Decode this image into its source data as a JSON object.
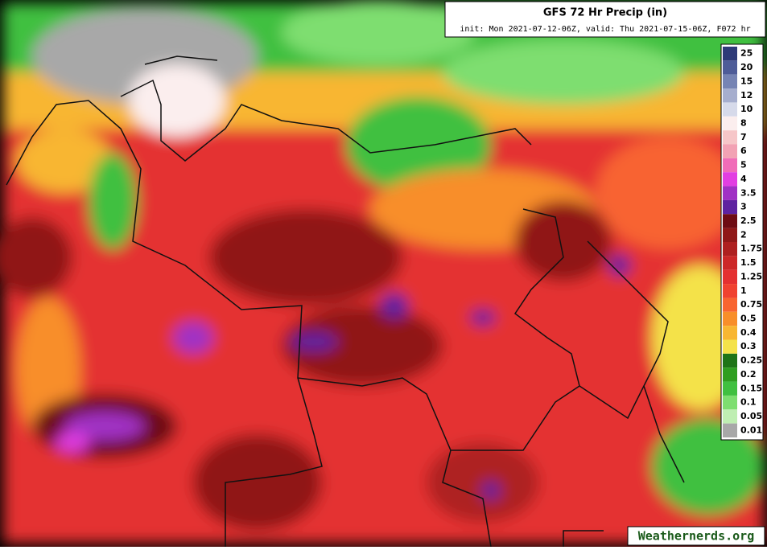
{
  "header": {
    "title": "GFS 72 Hr Precip (in)",
    "subtitle": "init: Mon 2021-07-12-06Z, valid: Thu 2021-07-15-06Z, F072 hr"
  },
  "legend": {
    "items": [
      {
        "label": "25",
        "color": "#2e3a78"
      },
      {
        "label": "20",
        "color": "#4e5c98"
      },
      {
        "label": "15",
        "color": "#7684b4"
      },
      {
        "label": "12",
        "color": "#a6aece"
      },
      {
        "label": "10",
        "color": "#d6daea"
      },
      {
        "label": "8",
        "color": "#fbeeee"
      },
      {
        "label": "7",
        "color": "#f6c6c8"
      },
      {
        "label": "6",
        "color": "#f2a2b4"
      },
      {
        "label": "5",
        "color": "#f06cb8"
      },
      {
        "label": "4",
        "color": "#e23ee2"
      },
      {
        "label": "3.5",
        "color": "#a030c4"
      },
      {
        "label": "3",
        "color": "#5e22a0"
      },
      {
        "label": "2.5",
        "color": "#6e0c14"
      },
      {
        "label": "2",
        "color": "#901818"
      },
      {
        "label": "1.75",
        "color": "#ae2020"
      },
      {
        "label": "1.5",
        "color": "#cc2828"
      },
      {
        "label": "1.25",
        "color": "#e43030"
      },
      {
        "label": "1",
        "color": "#f04230"
      },
      {
        "label": "0.75",
        "color": "#f86430"
      },
      {
        "label": "0.5",
        "color": "#f88e2a"
      },
      {
        "label": "0.4",
        "color": "#f8b632"
      },
      {
        "label": "0.3",
        "color": "#f4e24a"
      },
      {
        "label": "0.25",
        "color": "#1e7418"
      },
      {
        "label": "0.2",
        "color": "#2e9e20"
      },
      {
        "label": "0.15",
        "color": "#40c040"
      },
      {
        "label": "0.1",
        "color": "#7ede70"
      },
      {
        "label": "0.05",
        "color": "#bfeeb2"
      },
      {
        "label": "0.01",
        "color": "#a8a8a8"
      }
    ]
  },
  "watermark": "Weathernerds.org"
}
